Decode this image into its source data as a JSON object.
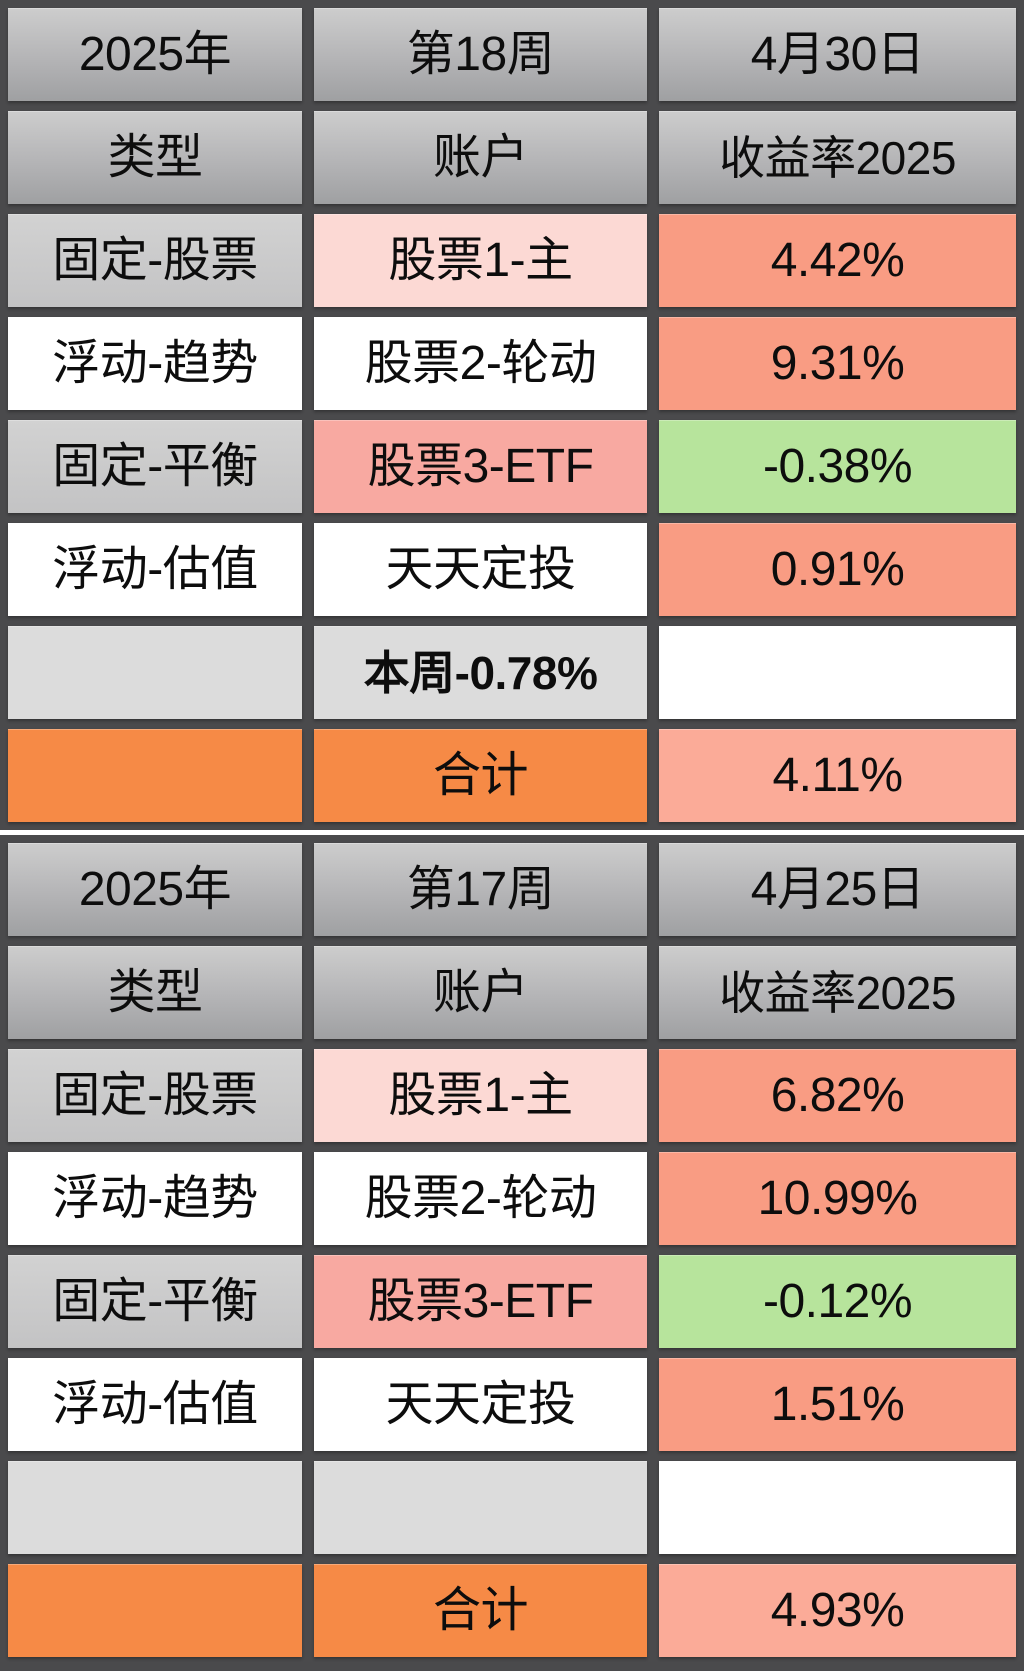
{
  "colors": {
    "border_background": "#4a4a4c",
    "table_separator": "#ffffff",
    "header_gradient_top": "#cdcdcd",
    "header_gradient_bottom": "#9fa0a2",
    "type_column_gray": "#c8c8c9",
    "cell_white": "#ffffff",
    "account_pink_light": "#fcd9d4",
    "account_pink_mid": "#f8a9a1",
    "rate_positive_salmon": "#f99c83",
    "rate_total_salmon_light": "#fbab98",
    "rate_negative_green": "#b7e49c",
    "empty_row_gray": "#dcdcdc",
    "total_row_orange": "#f68a46",
    "text": "#0d0d0d"
  },
  "chart_data": [
    {
      "type": "table",
      "title_cells": [
        "2025年",
        "第18周",
        "4月30日"
      ],
      "columns": [
        "类型",
        "账户",
        "收益率2025"
      ],
      "rows": [
        [
          "固定-股票",
          "股票1-主",
          "4.42%"
        ],
        [
          "浮动-趋势",
          "股票2-轮动",
          "9.31%"
        ],
        [
          "固定-平衡",
          "股票3-ETF",
          "-0.38%"
        ],
        [
          "浮动-估值",
          "天天定投",
          "0.91%"
        ],
        [
          "",
          "本周-0.78%",
          ""
        ],
        [
          "",
          "合计",
          "4.11%"
        ]
      ]
    },
    {
      "type": "table",
      "title_cells": [
        "2025年",
        "第17周",
        "4月25日"
      ],
      "columns": [
        "类型",
        "账户",
        "收益率2025"
      ],
      "rows": [
        [
          "固定-股票",
          "股票1-主",
          "6.82%"
        ],
        [
          "浮动-趋势",
          "股票2-轮动",
          "10.99%"
        ],
        [
          "固定-平衡",
          "股票3-ETF",
          "-0.12%"
        ],
        [
          "浮动-估值",
          "天天定投",
          "1.51%"
        ],
        [
          "",
          "",
          ""
        ],
        [
          "",
          "合计",
          "4.93%"
        ]
      ]
    }
  ]
}
